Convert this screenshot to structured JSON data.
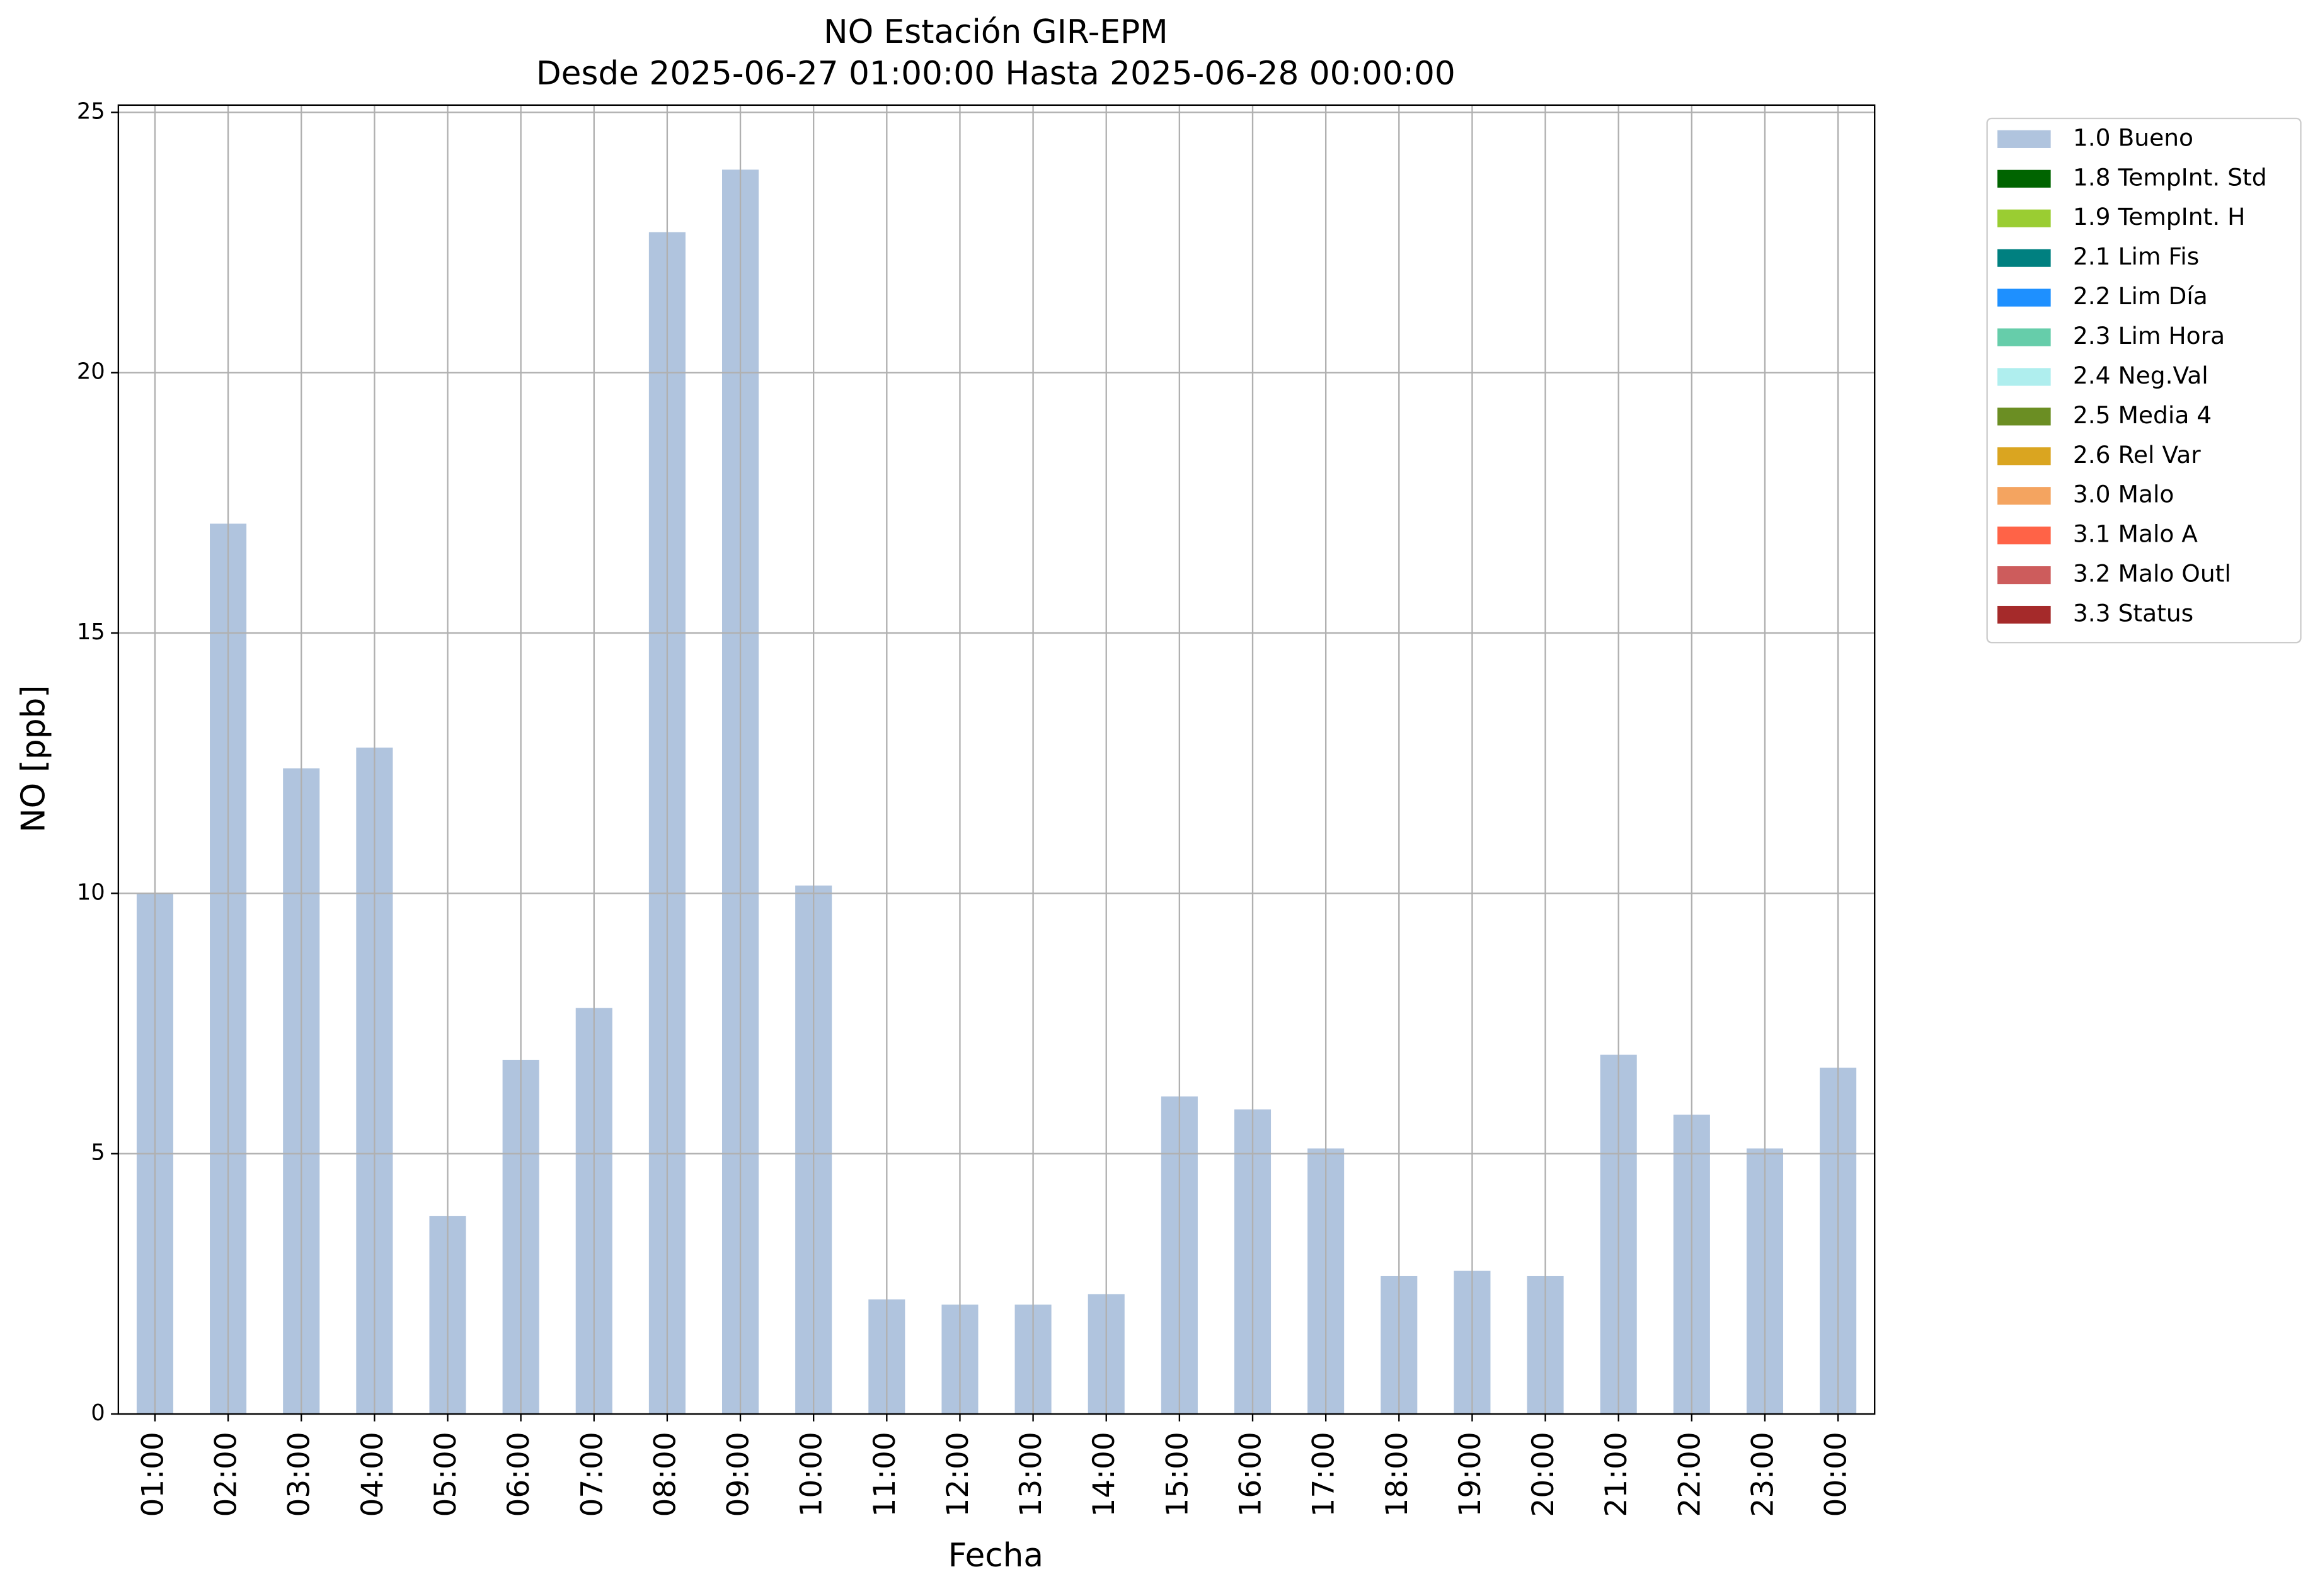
{
  "chart_data": {
    "type": "bar",
    "title": "NO Estación GIR-EPM",
    "subtitle": "Desde 2025-06-27 01:00:00 Hasta 2025-06-28 00:00:00",
    "x_label": "Fecha",
    "y_label": "NO [ppb]",
    "categories": [
      "01:00",
      "02:00",
      "03:00",
      "04:00",
      "05:00",
      "06:00",
      "07:00",
      "08:00",
      "09:00",
      "10:00",
      "11:00",
      "12:00",
      "13:00",
      "14:00",
      "15:00",
      "16:00",
      "17:00",
      "18:00",
      "19:00",
      "20:00",
      "21:00",
      "22:00",
      "23:00",
      "00:00"
    ],
    "series": [
      {
        "name": "1.0 Bueno",
        "color": "#b0c4de",
        "values": [
          10.0,
          17.1,
          12.4,
          12.8,
          3.8,
          6.8,
          7.8,
          22.7,
          23.9,
          10.15,
          2.2,
          2.1,
          2.1,
          2.3,
          6.1,
          5.85,
          5.1,
          2.65,
          2.75,
          2.65,
          6.9,
          5.75,
          5.1,
          6.65
        ]
      },
      {
        "name": "1.8 TempInt. Std",
        "color": "#006400",
        "values": [
          null,
          null,
          null,
          null,
          null,
          null,
          null,
          null,
          null,
          null,
          null,
          null,
          null,
          null,
          null,
          null,
          null,
          null,
          null,
          null,
          null,
          null,
          null,
          null
        ]
      },
      {
        "name": "1.9 TempInt. H",
        "color": "#9acd32",
        "values": [
          null,
          null,
          null,
          null,
          null,
          null,
          null,
          null,
          null,
          null,
          null,
          null,
          null,
          null,
          null,
          null,
          null,
          null,
          null,
          null,
          null,
          null,
          null,
          null
        ]
      },
      {
        "name": "2.1 Lim Fis",
        "color": "#008080",
        "values": [
          null,
          null,
          null,
          null,
          null,
          null,
          null,
          null,
          null,
          null,
          null,
          null,
          null,
          null,
          null,
          null,
          null,
          null,
          null,
          null,
          null,
          null,
          null,
          null
        ]
      },
      {
        "name": "2.2 Lim Día",
        "color": "#1e90ff",
        "values": [
          null,
          null,
          null,
          null,
          null,
          null,
          null,
          null,
          null,
          null,
          null,
          null,
          null,
          null,
          null,
          null,
          null,
          null,
          null,
          null,
          null,
          null,
          null,
          null
        ]
      },
      {
        "name": "2.3 Lim Hora",
        "color": "#66cdaa",
        "values": [
          null,
          null,
          null,
          null,
          null,
          null,
          null,
          null,
          null,
          null,
          null,
          null,
          null,
          null,
          null,
          null,
          null,
          null,
          null,
          null,
          null,
          null,
          null,
          null
        ]
      },
      {
        "name": "2.4 Neg.Val",
        "color": "#afeeee",
        "values": [
          null,
          null,
          null,
          null,
          null,
          null,
          null,
          null,
          null,
          null,
          null,
          null,
          null,
          null,
          null,
          null,
          null,
          null,
          null,
          null,
          null,
          null,
          null,
          null
        ]
      },
      {
        "name": "2.5 Media 4",
        "color": "#6b8e23",
        "values": [
          null,
          null,
          null,
          null,
          null,
          null,
          null,
          null,
          null,
          null,
          null,
          null,
          null,
          null,
          null,
          null,
          null,
          null,
          null,
          null,
          null,
          null,
          null,
          null
        ]
      },
      {
        "name": "2.6 Rel Var",
        "color": "#daa520",
        "values": [
          null,
          null,
          null,
          null,
          null,
          null,
          null,
          null,
          null,
          null,
          null,
          null,
          null,
          null,
          null,
          null,
          null,
          null,
          null,
          null,
          null,
          null,
          null,
          null
        ]
      },
      {
        "name": "3.0 Malo",
        "color": "#f4a460",
        "values": [
          null,
          null,
          null,
          null,
          null,
          null,
          null,
          null,
          null,
          null,
          null,
          null,
          null,
          null,
          null,
          null,
          null,
          null,
          null,
          null,
          null,
          null,
          null,
          null
        ]
      },
      {
        "name": "3.1 Malo A",
        "color": "#ff6347",
        "values": [
          null,
          null,
          null,
          null,
          null,
          null,
          null,
          null,
          null,
          null,
          null,
          null,
          null,
          null,
          null,
          null,
          null,
          null,
          null,
          null,
          null,
          null,
          null,
          null
        ]
      },
      {
        "name": "3.2 Malo Outl",
        "color": "#cd5c5c",
        "values": [
          null,
          null,
          null,
          null,
          null,
          null,
          null,
          null,
          null,
          null,
          null,
          null,
          null,
          null,
          null,
          null,
          null,
          null,
          null,
          null,
          null,
          null,
          null,
          null
        ]
      },
      {
        "name": "3.3 Status",
        "color": "#a52a2a",
        "values": [
          null,
          null,
          null,
          null,
          null,
          null,
          null,
          null,
          null,
          null,
          null,
          null,
          null,
          null,
          null,
          null,
          null,
          null,
          null,
          null,
          null,
          null,
          null,
          null
        ]
      }
    ],
    "ylim": [
      0,
      25.14
    ],
    "yticks": [
      0,
      5,
      10,
      15,
      20,
      25
    ],
    "grid": true,
    "stacked": true,
    "legend": "outside-upper-right"
  }
}
